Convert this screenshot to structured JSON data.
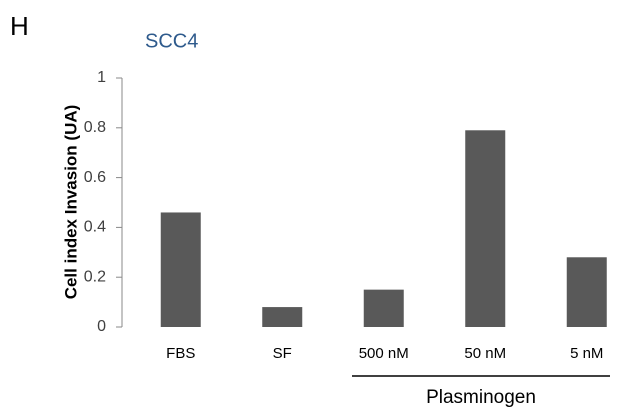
{
  "panel_label": "H",
  "chart_data": {
    "type": "bar",
    "title": "SCC4",
    "y_label": "Cell index Invasion (UA)",
    "categories": [
      "FBS",
      "SF",
      "500 nM",
      "50 nM",
      "5 nM"
    ],
    "values": [
      0.46,
      0.08,
      0.15,
      0.79,
      0.28
    ],
    "color": "#595959",
    "title_color": "#2e5a8c",
    "ylim": [
      0,
      1
    ],
    "yticks": [
      0,
      0.2,
      0.4,
      0.6,
      0.8,
      1
    ],
    "group_label": "Plasminogen",
    "grid": false
  }
}
